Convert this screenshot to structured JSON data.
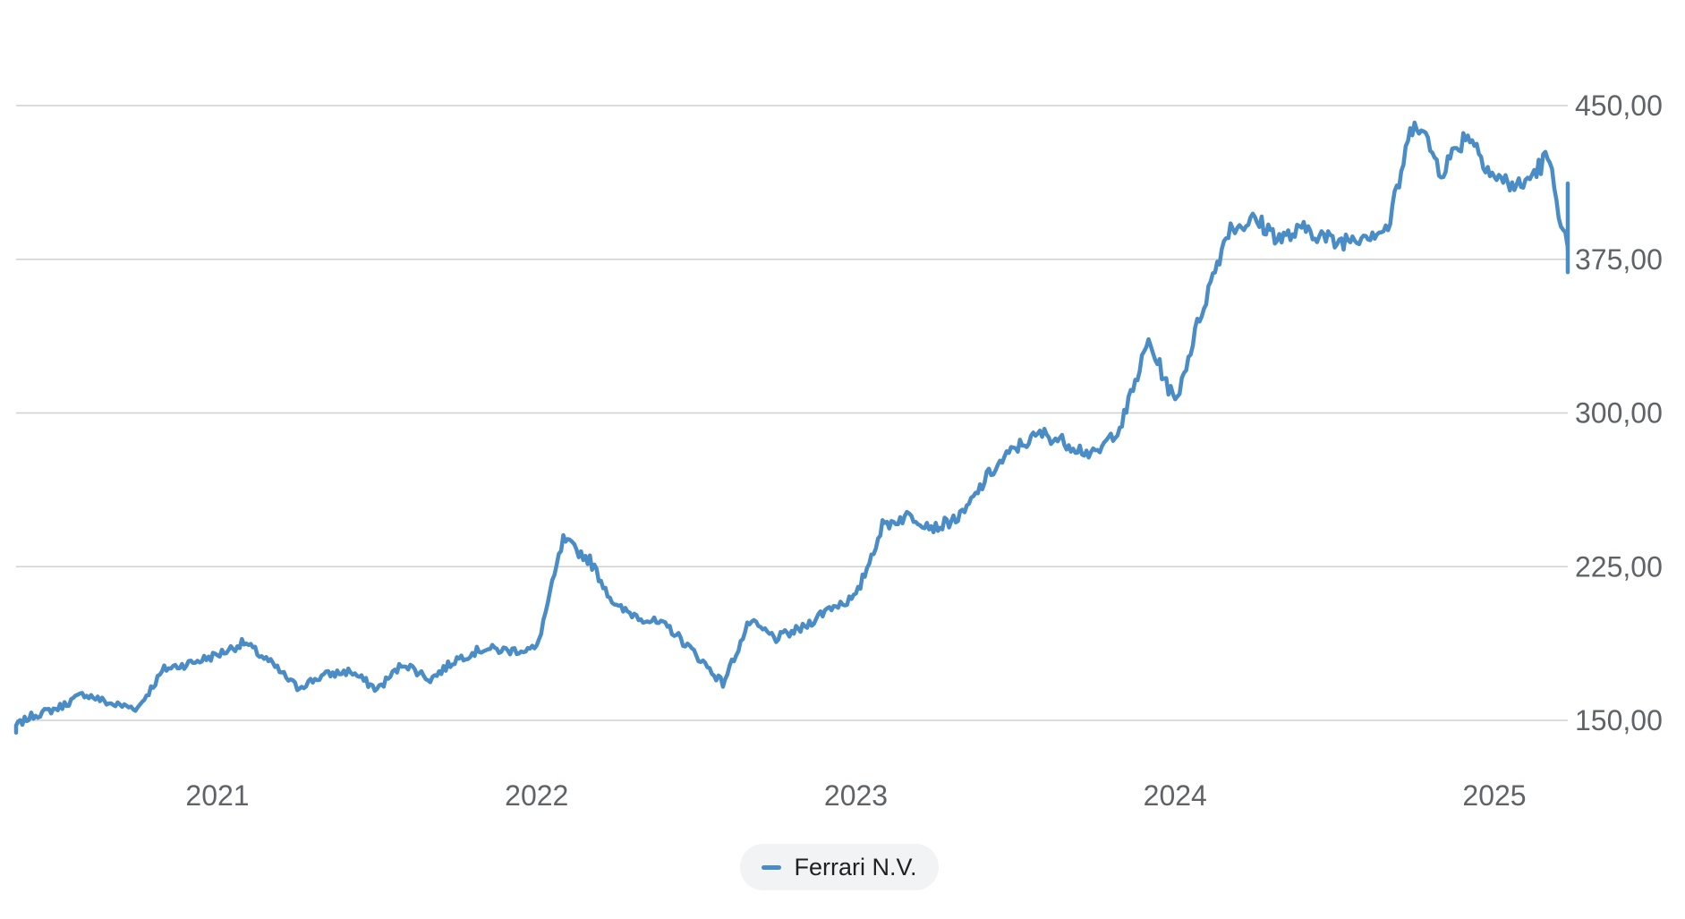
{
  "chart_data": {
    "type": "line",
    "title": "",
    "xlabel": "",
    "ylabel": "",
    "x_ticks": [
      "2021",
      "2022",
      "2023",
      "2024",
      "2025"
    ],
    "y_ticks": [
      "150,00",
      "225,00",
      "300,00",
      "375,00",
      "450,00"
    ],
    "y_tick_values": [
      150,
      225,
      300,
      375,
      450
    ],
    "ylim": [
      140,
      487
    ],
    "xlim": [
      "2020-05",
      "2025-05"
    ],
    "grid": true,
    "legend_position": "bottom-center",
    "series": [
      {
        "name": "Ferrari N.V.",
        "color": "#4a8cc5",
        "x": [
          "2020-05",
          "2020-06",
          "2020-07",
          "2020-08",
          "2020-09",
          "2020-10",
          "2020-11",
          "2020-12",
          "2021-01",
          "2021-02",
          "2021-03",
          "2021-04",
          "2021-05",
          "2021-06",
          "2021-07",
          "2021-08",
          "2021-09",
          "2021-10",
          "2021-11",
          "2021-12",
          "2022-01",
          "2022-02",
          "2022-03",
          "2022-04",
          "2022-05",
          "2022-06",
          "2022-07",
          "2022-08",
          "2022-09",
          "2022-10",
          "2022-11",
          "2022-12",
          "2023-01",
          "2023-02",
          "2023-03",
          "2023-04",
          "2023-05",
          "2023-06",
          "2023-07",
          "2023-08",
          "2023-09",
          "2023-10",
          "2023-11",
          "2023-12",
          "2024-01",
          "2024-02",
          "2024-03",
          "2024-04",
          "2024-05",
          "2024-06",
          "2024-07",
          "2024-08",
          "2024-09",
          "2024-10",
          "2024-11",
          "2024-12",
          "2025-01",
          "2025-02",
          "2025-03",
          "2025-04",
          "2025-05"
        ],
        "values": [
          144,
          152,
          156,
          163,
          158,
          156,
          175,
          178,
          182,
          188,
          178,
          166,
          172,
          174,
          165,
          178,
          170,
          180,
          185,
          184,
          185,
          238,
          228,
          205,
          200,
          195,
          182,
          168,
          198,
          190,
          195,
          205,
          210,
          245,
          250,
          244,
          250,
          270,
          283,
          290,
          285,
          279,
          295,
          335,
          305,
          350,
          390,
          394,
          385,
          390,
          383,
          387,
          390,
          445,
          418,
          437,
          415,
          410,
          425,
          365,
          412
        ]
      }
    ]
  },
  "legend": {
    "label": "Ferrari N.V.",
    "swatch_color": "#4a8cc5"
  }
}
